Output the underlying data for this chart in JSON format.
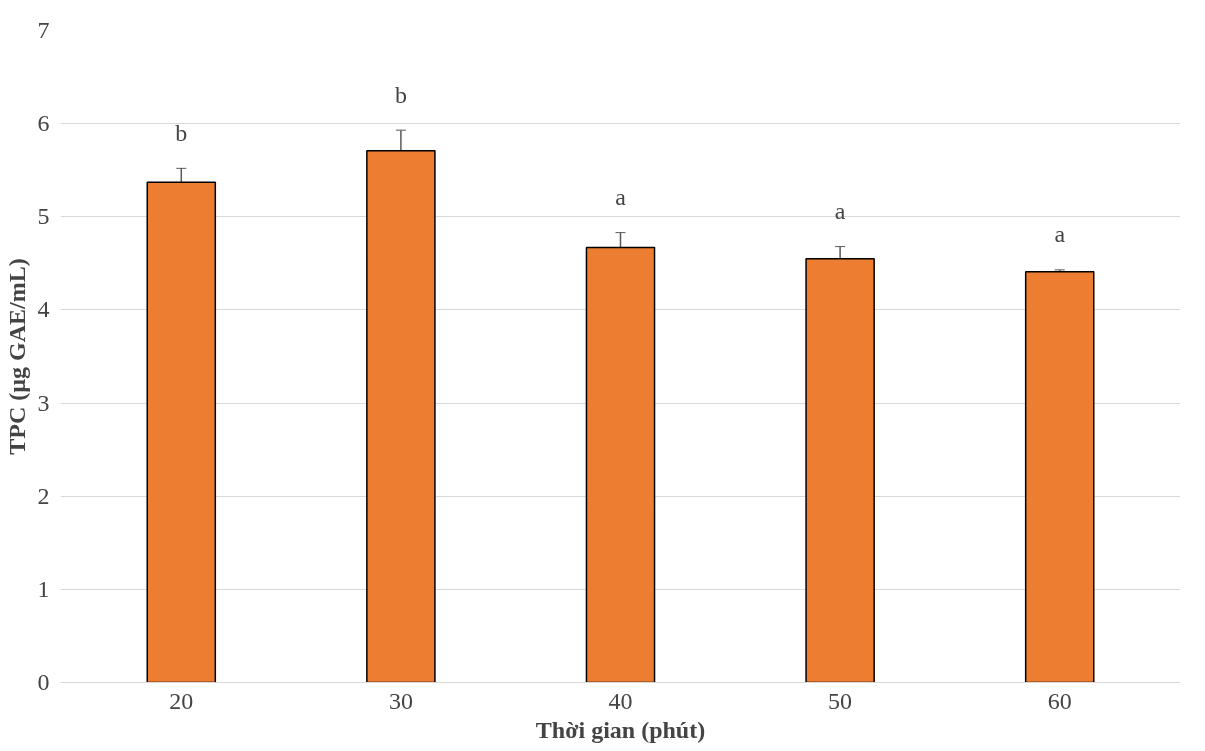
{
  "chart_data": {
    "type": "bar",
    "xlabel": "Thời gian (phút)",
    "ylabel": "TPC (µg GAE/mL)",
    "categories": [
      "20",
      "30",
      "40",
      "50",
      "60"
    ],
    "values": [
      5.37,
      5.71,
      4.67,
      4.55,
      4.41
    ],
    "color": "#ed7d31",
    "errors": [
      0.15,
      0.22,
      0.16,
      0.13,
      0.02
    ],
    "ylim": [
      0,
      7
    ],
    "yticks": [
      0,
      1,
      2,
      3,
      4,
      5,
      6,
      7
    ],
    "grid": "y",
    "annotations": [
      "b",
      "b",
      "a",
      "a",
      "a"
    ]
  }
}
